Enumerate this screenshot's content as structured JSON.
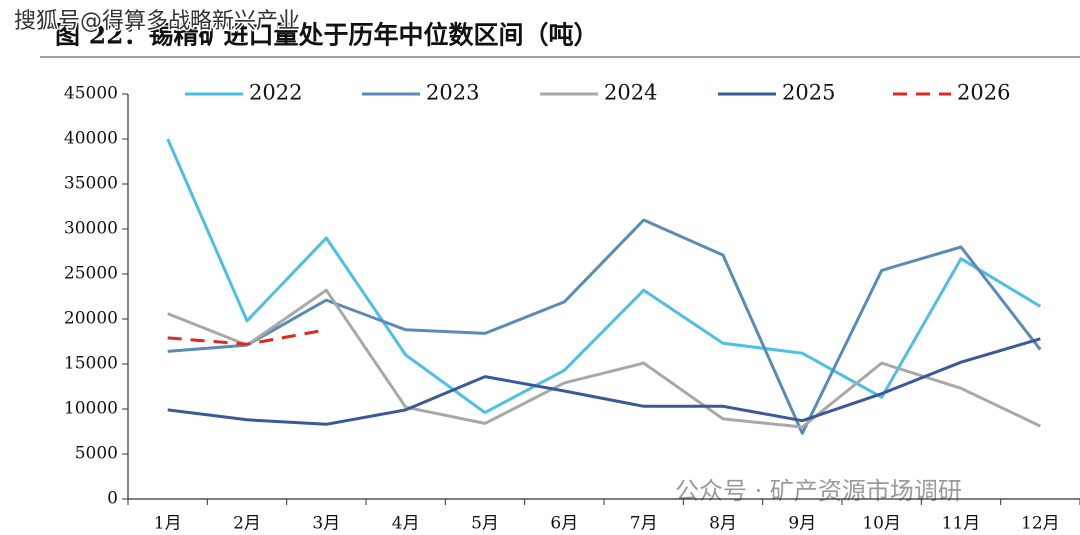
{
  "chart_data": {
    "type": "line",
    "title": "图 22：锡精矿进口量处于历年中位数区间（吨）",
    "watermarks": [
      "搜狐号@得算多战略新兴产业",
      "公众号 · 矿产资源市场调研"
    ],
    "categories": [
      "1月",
      "2月",
      "3月",
      "4月",
      "5月",
      "6月",
      "7月",
      "8月",
      "9月",
      "10月",
      "11月",
      "12月"
    ],
    "series": [
      {
        "name": "2022",
        "color": "#4dbfe6",
        "values": [
          40000,
          19800,
          29000,
          16000,
          9600,
          14300,
          23200,
          17300,
          16200,
          11300,
          26700,
          21400
        ]
      },
      {
        "name": "2023",
        "color": "#5a8bb6",
        "values": [
          16400,
          17100,
          22100,
          18800,
          18400,
          21900,
          31000,
          27100,
          7300,
          25400,
          28000,
          16600
        ]
      },
      {
        "name": "2024",
        "color": "#a8a8a8",
        "values": [
          20600,
          17100,
          23200,
          10200,
          8400,
          12900,
          15100,
          8900,
          8000,
          15100,
          12300,
          8100
        ]
      },
      {
        "name": "2025",
        "color": "#3b5998",
        "values": [
          9900,
          8800,
          8300,
          9900,
          13600,
          12000,
          10300,
          10300,
          8700,
          11700,
          15200,
          17800
        ]
      },
      {
        "name": "2026",
        "color": "#e0281e",
        "dashed": true,
        "values": [
          17900,
          17200,
          18800,
          null,
          null,
          null,
          null,
          null,
          null,
          null,
          null,
          null
        ]
      }
    ],
    "ylim": [
      0,
      45000
    ],
    "yticks": [
      0,
      5000,
      10000,
      15000,
      20000,
      25000,
      30000,
      35000,
      40000,
      45000
    ],
    "legend": "top",
    "grid": false
  }
}
